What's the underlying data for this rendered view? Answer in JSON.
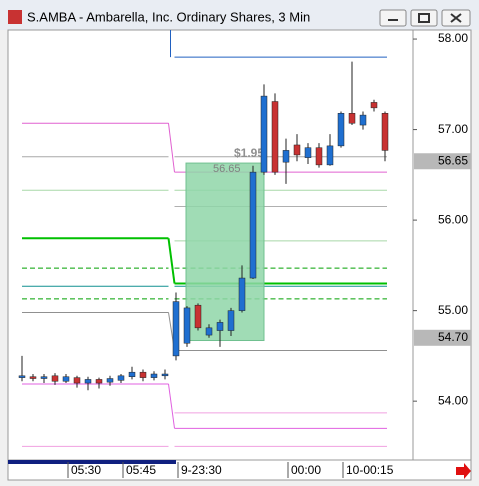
{
  "chart_data": {
    "type": "candlestick",
    "title": "S.AMBA - Ambarella, Inc. Ordinary Shares, 3 Min",
    "categories": [
      null,
      null,
      null,
      null,
      "05:30",
      null,
      null,
      null,
      null,
      "05:45",
      null,
      null,
      null,
      null,
      "9-23:30",
      null,
      null,
      null,
      null,
      null,
      null,
      null,
      null,
      null,
      "00:00",
      null,
      null,
      null,
      null,
      "10-00:15",
      null,
      null,
      null,
      null
    ],
    "open": [
      54.26,
      54.27,
      54.25,
      54.28,
      54.22,
      54.26,
      54.2,
      54.24,
      54.21,
      54.23,
      54.27,
      54.32,
      54.26,
      54.28,
      54.5,
      54.64,
      55.06,
      54.73,
      54.78,
      54.78,
      55.0,
      55.36,
      56.53,
      57.31,
      56.64,
      56.83,
      56.69,
      56.8,
      56.61,
      56.82,
      57.18,
      57.05,
      57.3,
      57.18
    ],
    "high": [
      54.5,
      54.3,
      54.3,
      54.31,
      54.3,
      54.28,
      54.27,
      54.26,
      54.28,
      54.3,
      54.38,
      54.35,
      54.33,
      54.35,
      55.2,
      55.05,
      55.08,
      54.85,
      54.9,
      55.03,
      55.5,
      56.6,
      57.5,
      57.4,
      56.9,
      56.95,
      56.85,
      56.85,
      56.95,
      57.2,
      57.75,
      57.2,
      57.33,
      57.2
    ],
    "low": [
      54.22,
      54.22,
      54.2,
      54.18,
      54.2,
      54.15,
      54.12,
      54.14,
      54.17,
      54.2,
      54.24,
      54.22,
      54.23,
      54.24,
      54.45,
      54.6,
      54.78,
      54.7,
      54.6,
      54.72,
      54.98,
      55.35,
      56.5,
      56.5,
      56.4,
      56.65,
      56.62,
      56.58,
      56.6,
      56.8,
      57.05,
      57.0,
      57.2,
      56.65
    ],
    "close": [
      54.28,
      54.25,
      54.27,
      54.22,
      54.27,
      54.2,
      54.24,
      54.2,
      54.25,
      54.28,
      54.32,
      54.26,
      54.3,
      54.3,
      55.1,
      55.03,
      54.81,
      54.81,
      54.87,
      55.0,
      55.36,
      56.53,
      57.37,
      56.53,
      56.77,
      56.72,
      56.8,
      56.61,
      56.82,
      57.18,
      57.07,
      57.16,
      57.24,
      56.77
    ],
    "up_color": "#1f6fd0",
    "down_color": "#c83232",
    "ylim": [
      53.35,
      58.1
    ],
    "yticks": [
      {
        "value": 54,
        "label": "54.00"
      },
      {
        "value": 55,
        "label": "55.00"
      },
      {
        "value": 56,
        "label": "56.00"
      },
      {
        "value": 57,
        "label": "57.00"
      },
      {
        "value": 58,
        "label": "58.00"
      }
    ],
    "overlays": [
      {
        "color": "#2060c0",
        "values": [
          null,
          57.8
        ]
      },
      {
        "color": "#e060d0",
        "values": [
          57.07,
          56.53
        ]
      },
      {
        "color": "#a8a8a8",
        "values": [
          56.7,
          56.7
        ]
      },
      {
        "color": "#a8d8a8",
        "values": [
          56.33,
          56.33
        ]
      },
      {
        "color": "#b0b0b0",
        "values": [
          null,
          56.15
        ]
      },
      {
        "color": "#a8d8a8",
        "values": [
          null,
          55.77
        ]
      },
      {
        "color": "#00c000",
        "values": [
          55.8,
          55.3
        ]
      },
      {
        "color": "#00a000",
        "dash": true,
        "values": [
          55.47,
          55.47
        ]
      },
      {
        "color": "#00a000",
        "dash": true,
        "values": [
          55.13,
          55.13
        ]
      },
      {
        "color": "#109090",
        "values": [
          55.27,
          55.27
        ]
      },
      {
        "color": "#909090",
        "values": [
          54.98,
          54.56
        ]
      },
      {
        "color": "#e060e0",
        "values": [
          54.19,
          53.7
        ]
      },
      {
        "color": "#f0a0e0",
        "values": [
          null,
          53.87
        ]
      },
      {
        "color": "#f0a0e0",
        "values": [
          53.5,
          53.5
        ]
      }
    ],
    "box": {
      "color": "#8fd6a8",
      "values": [
        56.63,
        54.67
      ]
    },
    "annotations": [
      "$1.95",
      "56.65"
    ],
    "price_labels": [
      {
        "value": 56.65,
        "label": "56.65"
      },
      {
        "value": 54.7,
        "label": "54.70"
      }
    ]
  }
}
